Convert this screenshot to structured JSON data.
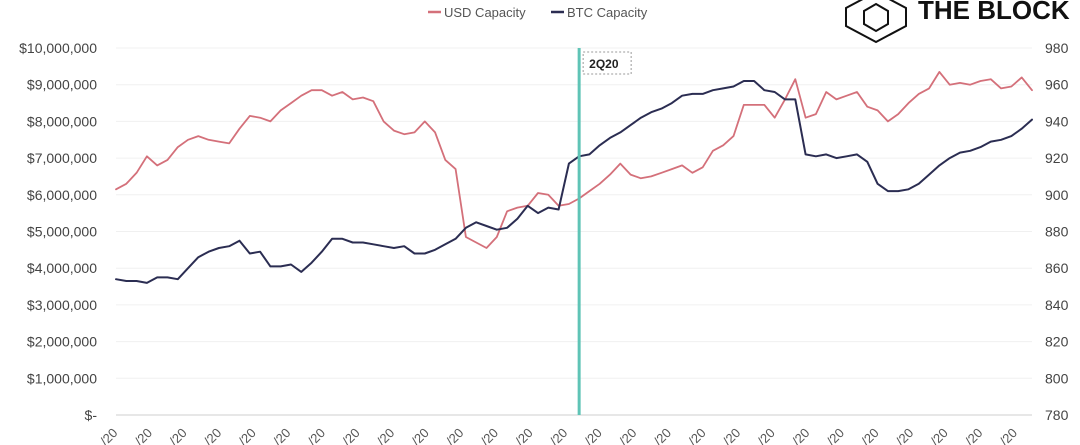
{
  "brand": {
    "name": "THE BLOCK",
    "logo_icon": "cube-logo-icon"
  },
  "colors": {
    "usd": "#d4707a",
    "btc": "#2b2d52",
    "marker": "#5fc4b6",
    "grid": "#f0f0f0"
  },
  "chart_data": {
    "type": "line",
    "legend": [
      "USD Capacity",
      "BTC Capacity"
    ],
    "legend_position": "top-center",
    "grid": true,
    "y_left": {
      "ticks": [
        "$10,000,000",
        "$9,000,000",
        "$8,000,000",
        "$7,000,000",
        "$6,000,000",
        "$5,000,000",
        "$4,000,000",
        "$3,000,000",
        "$2,000,000",
        "$1,000,000",
        "$-"
      ],
      "range": [
        0,
        10000000
      ]
    },
    "y_right": {
      "ticks": [
        "980",
        "960",
        "940",
        "920",
        "900",
        "880",
        "860",
        "840",
        "820",
        "800",
        "780"
      ],
      "range": [
        780,
        980
      ]
    },
    "x_ticks": [
      "/20",
      "/20",
      "/20",
      "/20",
      "/20",
      "/20",
      "/20",
      "/20",
      "/20",
      "/20",
      "/20",
      "/20",
      "/20",
      "/20",
      "/20",
      "/20",
      "/20",
      "/20",
      "/20",
      "/20",
      "/20",
      "/20",
      "/20",
      "/20",
      "/20",
      "/20",
      "/20"
    ],
    "annotation": {
      "label": "2Q20",
      "at_x": 45
    },
    "series": [
      {
        "name": "USD Capacity",
        "axis": "left",
        "x": [
          0,
          1,
          2,
          3,
          4,
          5,
          6,
          7,
          8,
          9,
          10,
          11,
          12,
          13,
          14,
          15,
          16,
          17,
          18,
          19,
          20,
          21,
          22,
          23,
          24,
          25,
          26,
          27,
          28,
          29,
          30,
          31,
          32,
          33,
          34,
          35,
          36,
          37,
          38,
          39,
          40,
          41,
          42,
          43,
          44,
          45,
          46,
          47,
          48,
          49,
          50,
          51,
          52,
          53,
          54,
          55,
          56,
          57,
          58,
          59,
          60,
          61,
          62,
          63,
          64,
          65,
          66,
          67,
          68,
          69,
          70,
          71,
          72,
          73,
          74,
          75,
          76,
          77,
          78,
          79,
          80,
          81,
          82,
          83,
          84,
          85,
          86,
          87,
          88,
          89
        ],
        "values": [
          6150000,
          6300000,
          6600000,
          7050000,
          6800000,
          6950000,
          7300000,
          7500000,
          7600000,
          7500000,
          7450000,
          7400000,
          7800000,
          8150000,
          8100000,
          8000000,
          8300000,
          8500000,
          8700000,
          8850000,
          8850000,
          8700000,
          8800000,
          8600000,
          8650000,
          8550000,
          8000000,
          7750000,
          7650000,
          7700000,
          8000000,
          7700000,
          6950000,
          6700000,
          4850000,
          4700000,
          4550000,
          4850000,
          5550000,
          5650000,
          5700000,
          6050000,
          6000000,
          5700000,
          5750000,
          5900000,
          6100000,
          6300000,
          6550000,
          6850000,
          6550000,
          6450000,
          6500000,
          6600000,
          6700000,
          6800000,
          6600000,
          6750000,
          7200000,
          7350000,
          7600000,
          8450000,
          8450000,
          8450000,
          8100000,
          8600000,
          9150000,
          8100000,
          8200000,
          8800000,
          8600000,
          8700000,
          8800000,
          8400000,
          8300000,
          8000000,
          8200000,
          8500000,
          8750000,
          8900000,
          9350000,
          9000000,
          9050000,
          9000000,
          9100000,
          9150000,
          8900000,
          8950000,
          9200000,
          8850000
        ]
      },
      {
        "name": "BTC Capacity",
        "axis": "right",
        "x": [
          0,
          1,
          2,
          3,
          4,
          5,
          6,
          7,
          8,
          9,
          10,
          11,
          12,
          13,
          14,
          15,
          16,
          17,
          18,
          19,
          20,
          21,
          22,
          23,
          24,
          25,
          26,
          27,
          28,
          29,
          30,
          31,
          32,
          33,
          34,
          35,
          36,
          37,
          38,
          39,
          40,
          41,
          42,
          43,
          44,
          45,
          46,
          47,
          48,
          49,
          50,
          51,
          52,
          53,
          54,
          55,
          56,
          57,
          58,
          59,
          60,
          61,
          62,
          63,
          64,
          65,
          66,
          67,
          68,
          69,
          70,
          71,
          72,
          73,
          74,
          75,
          76,
          77,
          78,
          79,
          80,
          81,
          82,
          83,
          84,
          85,
          86,
          87,
          88,
          89
        ],
        "values": [
          854,
          853,
          853,
          852,
          855,
          855,
          854,
          860,
          866,
          869,
          871,
          872,
          875,
          868,
          869,
          861,
          861,
          862,
          858,
          863,
          869,
          876,
          876,
          874,
          874,
          873,
          872,
          871,
          872,
          868,
          868,
          870,
          873,
          876,
          882,
          885,
          883,
          881,
          882,
          887,
          894,
          890,
          893,
          892,
          917,
          921,
          922,
          927,
          931,
          934,
          938,
          942,
          945,
          947,
          950,
          954,
          955,
          955,
          957,
          958,
          959,
          962,
          962,
          957,
          956,
          952,
          952,
          922,
          921,
          922,
          920,
          921,
          922,
          918,
          906,
          902,
          902,
          903,
          906,
          911,
          916,
          920,
          923,
          924,
          926,
          929,
          930,
          932,
          936,
          941
        ]
      }
    ]
  }
}
